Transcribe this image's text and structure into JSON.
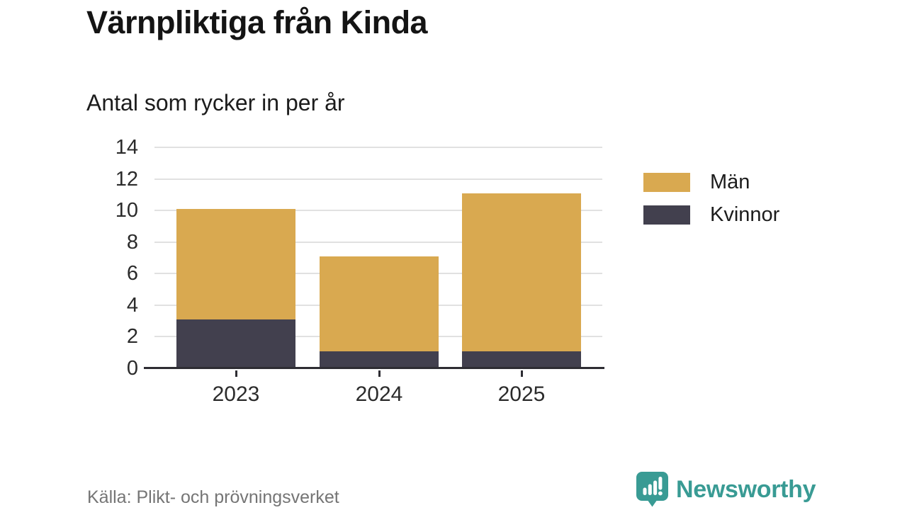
{
  "header": {
    "title": "Värnpliktiga från Kinda",
    "subtitle": "Antal som rycker in per år"
  },
  "chart_data": {
    "type": "bar",
    "stacked": true,
    "title": "Värnpliktiga från Kinda",
    "subtitle": "Antal som rycker in per år",
    "categories": [
      "2023",
      "2024",
      "2025"
    ],
    "series": [
      {
        "name": "Män",
        "color": "#d9a950",
        "values": [
          7,
          6,
          10
        ]
      },
      {
        "name": "Kvinnor",
        "color": "#42404e",
        "values": [
          3,
          1,
          1
        ]
      }
    ],
    "totals": [
      10,
      7,
      11
    ],
    "xlabel": "",
    "ylabel": "",
    "ylim": [
      0,
      14
    ],
    "yticks": [
      0,
      2,
      4,
      6,
      8,
      10,
      12,
      14
    ],
    "grid": true,
    "legend_position": "right"
  },
  "footer": {
    "source": "Källa: Plikt- och prövningsverket",
    "brand": "Newsworthy",
    "brand_color": "#399b94"
  }
}
